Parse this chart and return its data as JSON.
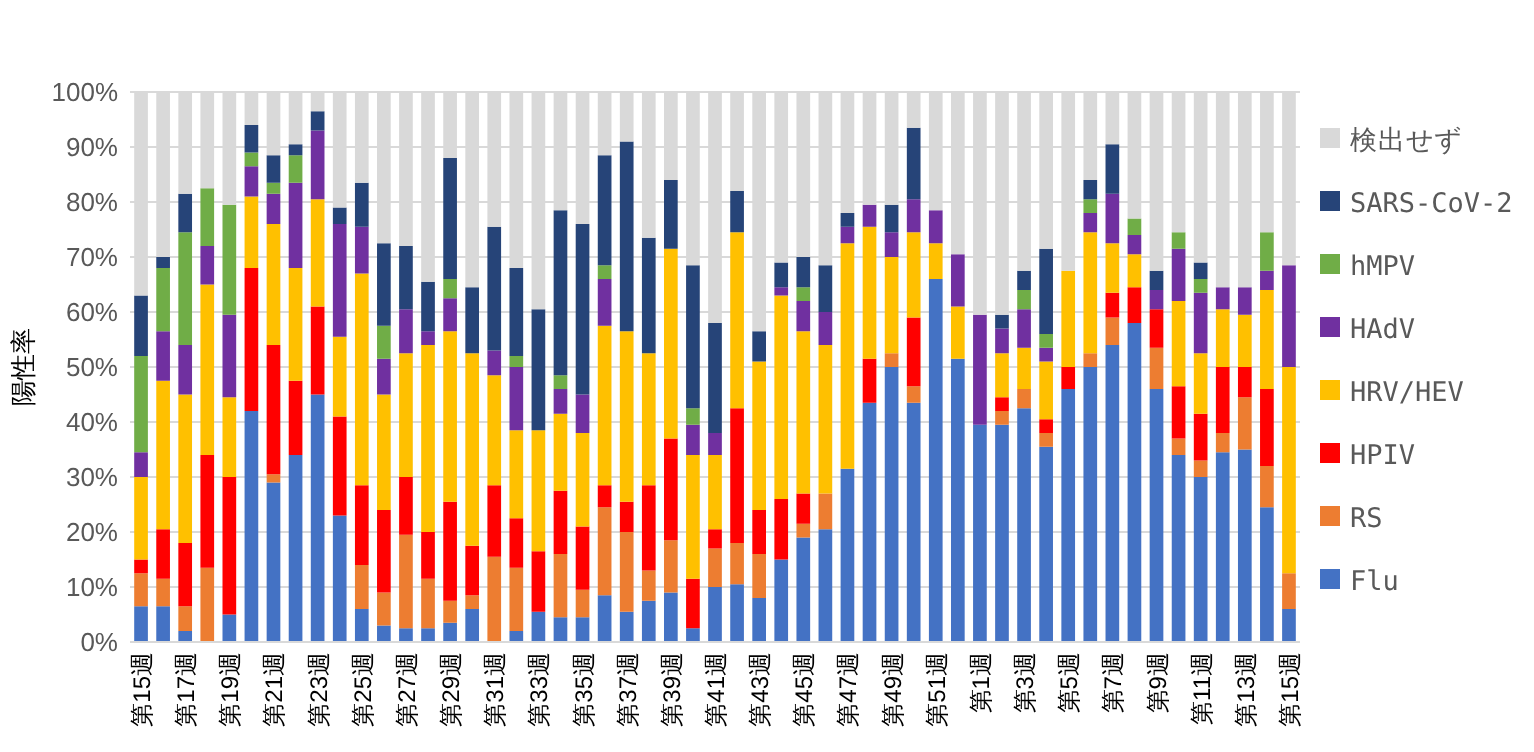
{
  "chart_data": {
    "type": "bar",
    "stacked": true,
    "ylabel": "陽性率",
    "grid": "y",
    "legend": "right",
    "ylim": [
      0,
      100
    ],
    "yticks": [
      {
        "value": 0,
        "label": "0%"
      },
      {
        "value": 10,
        "label": "10%"
      },
      {
        "value": 20,
        "label": "20%"
      },
      {
        "value": 30,
        "label": "30%"
      },
      {
        "value": 40,
        "label": "40%"
      },
      {
        "value": 50,
        "label": "50%"
      },
      {
        "value": 60,
        "label": "60%"
      },
      {
        "value": 70,
        "label": "70%"
      },
      {
        "value": 80,
        "label": "80%"
      },
      {
        "value": 90,
        "label": "90%"
      },
      {
        "value": 100,
        "label": "100%"
      }
    ],
    "categories": [
      "第15週",
      null,
      "第17週",
      null,
      "第19週",
      null,
      "第21週",
      null,
      "第23週",
      null,
      "第25週",
      null,
      "第27週",
      null,
      "第29週",
      null,
      "第31週",
      null,
      "第33週",
      null,
      "第35週",
      null,
      "第37週",
      null,
      "第39週",
      null,
      "第41週",
      null,
      "第43週",
      null,
      "第45週",
      null,
      "第47週",
      null,
      "第49週",
      null,
      "第51週",
      null,
      "第1週",
      null,
      "第3週",
      null,
      "第5週",
      null,
      "第7週",
      null,
      "第9週",
      null,
      "第11週",
      null,
      "第13週",
      null,
      "第15週"
    ],
    "series": [
      {
        "name": "Flu",
        "color": "#4472c4",
        "values": [
          6.5,
          6.5,
          2,
          0,
          5,
          42,
          29,
          34,
          45,
          23,
          6,
          3,
          2.5,
          2.5,
          3.5,
          6,
          0,
          2,
          5.5,
          4.5,
          4.5,
          8.5,
          5.5,
          7.5,
          9,
          2.5,
          10,
          10.5,
          8,
          15,
          19,
          20.5,
          31.5,
          43.5,
          50,
          43.5,
          66,
          51.5,
          39.5,
          39.5,
          42.5,
          35.5,
          46,
          50,
          54,
          58,
          46,
          34,
          30,
          34.5,
          35,
          24.5,
          6
        ]
      },
      {
        "name": "RS",
        "color": "#ed7d31",
        "values": [
          6,
          5,
          4.5,
          13.5,
          0,
          0,
          1.5,
          0,
          0,
          0,
          8,
          6,
          17,
          9,
          4,
          2.5,
          15.5,
          11.5,
          0,
          11.5,
          5,
          16,
          14.5,
          5.5,
          9.5,
          0,
          7,
          7.5,
          8,
          0,
          2.5,
          6.5,
          0,
          0,
          2.5,
          3,
          0,
          0,
          0,
          2.5,
          3.5,
          2.5,
          0,
          2.5,
          5,
          0,
          7.5,
          3,
          3,
          3.5,
          9.5,
          7.5,
          6.5
        ]
      },
      {
        "name": "HPIV",
        "color": "#ff0000",
        "values": [
          2.5,
          9,
          11.5,
          20.5,
          25,
          26,
          23.5,
          13.5,
          16,
          18,
          14.5,
          15,
          10.5,
          8.5,
          18,
          9,
          13,
          9,
          11,
          11.5,
          11.5,
          4,
          5.5,
          15.5,
          18.5,
          9,
          3.5,
          24.5,
          8,
          11,
          5.5,
          0,
          0,
          8,
          0,
          12.5,
          0,
          0,
          0,
          2.5,
          0,
          2.5,
          4,
          0,
          4.5,
          6.5,
          7,
          9.5,
          8.5,
          12,
          5.5,
          14,
          0
        ]
      },
      {
        "name": "HRV/HEV",
        "color": "#ffc000",
        "values": [
          15,
          27,
          27,
          31,
          14.5,
          13,
          22,
          20.5,
          19.5,
          14.5,
          38.5,
          21,
          22.5,
          34,
          31,
          35,
          20,
          16,
          22,
          14,
          17,
          29,
          31,
          24,
          34.5,
          22.5,
          13.5,
          32,
          27,
          37,
          29.5,
          27,
          41,
          24,
          17.5,
          15.5,
          6.5,
          9.5,
          0,
          8,
          7.5,
          10.5,
          17.5,
          22,
          9,
          6,
          0,
          15.5,
          11,
          10.5,
          9.5,
          18,
          37.5
        ]
      },
      {
        "name": "HAdV",
        "color": "#7030a0",
        "values": [
          4.5,
          9,
          9,
          7,
          15,
          5.5,
          5.5,
          15.5,
          12.5,
          20.5,
          8.5,
          6.5,
          8,
          2.5,
          6,
          0,
          4.5,
          11.5,
          0,
          4.5,
          7,
          8.5,
          0,
          0,
          0,
          5.5,
          4,
          0,
          0,
          1.5,
          5.5,
          6,
          3,
          4,
          4.5,
          6,
          6,
          9.5,
          20,
          4.5,
          7,
          2.5,
          0,
          3.5,
          9,
          3.5,
          3.5,
          9.5,
          11,
          4,
          5,
          3.5,
          18.5
        ]
      },
      {
        "name": "hMPV",
        "color": "#70ad47",
        "values": [
          17.5,
          11.5,
          20.5,
          10.5,
          20,
          2.5,
          2,
          5,
          0,
          0,
          0,
          6,
          0,
          0,
          3.5,
          0,
          0,
          2,
          0,
          2.5,
          0,
          2.5,
          0,
          0,
          0,
          3,
          0,
          0,
          0,
          0,
          2.5,
          0,
          0,
          0,
          0,
          0,
          0,
          0,
          0,
          0,
          3.5,
          2.5,
          0,
          2.5,
          0,
          3,
          0,
          3,
          2.5,
          0,
          0,
          7,
          0
        ]
      },
      {
        "name": "SARS-CoV-2",
        "color": "#264478",
        "values": [
          11,
          2,
          7,
          0,
          0,
          5,
          5,
          2,
          3.5,
          3,
          8,
          15,
          11.5,
          9,
          22,
          12,
          22.5,
          16,
          22,
          30,
          31,
          20,
          34.5,
          21,
          12.5,
          26,
          20,
          7.5,
          5.5,
          4.5,
          5.5,
          8.5,
          2.5,
          0,
          5,
          13,
          0,
          0,
          0,
          2.5,
          3.5,
          15.5,
          0,
          3.5,
          9,
          0,
          3.5,
          0,
          3,
          0,
          0,
          0,
          0
        ]
      },
      {
        "name": "検出せず",
        "color": "#d9d9d9",
        "values": [
          37,
          30,
          18.5,
          17.5,
          20.5,
          6,
          11.5,
          9.5,
          3.5,
          21,
          16.5,
          27.5,
          28,
          34.5,
          12,
          35.5,
          24.5,
          32,
          39.5,
          21.5,
          24,
          11.5,
          9,
          26.5,
          16,
          31.5,
          42,
          18,
          43.5,
          31,
          30,
          31.5,
          22,
          20.5,
          20.5,
          6.5,
          21.5,
          29.5,
          40.5,
          40.5,
          32.5,
          28.5,
          32.5,
          16,
          9.5,
          23,
          32.5,
          25.5,
          31,
          35.5,
          35.5,
          25.5,
          31.5
        ]
      }
    ]
  }
}
